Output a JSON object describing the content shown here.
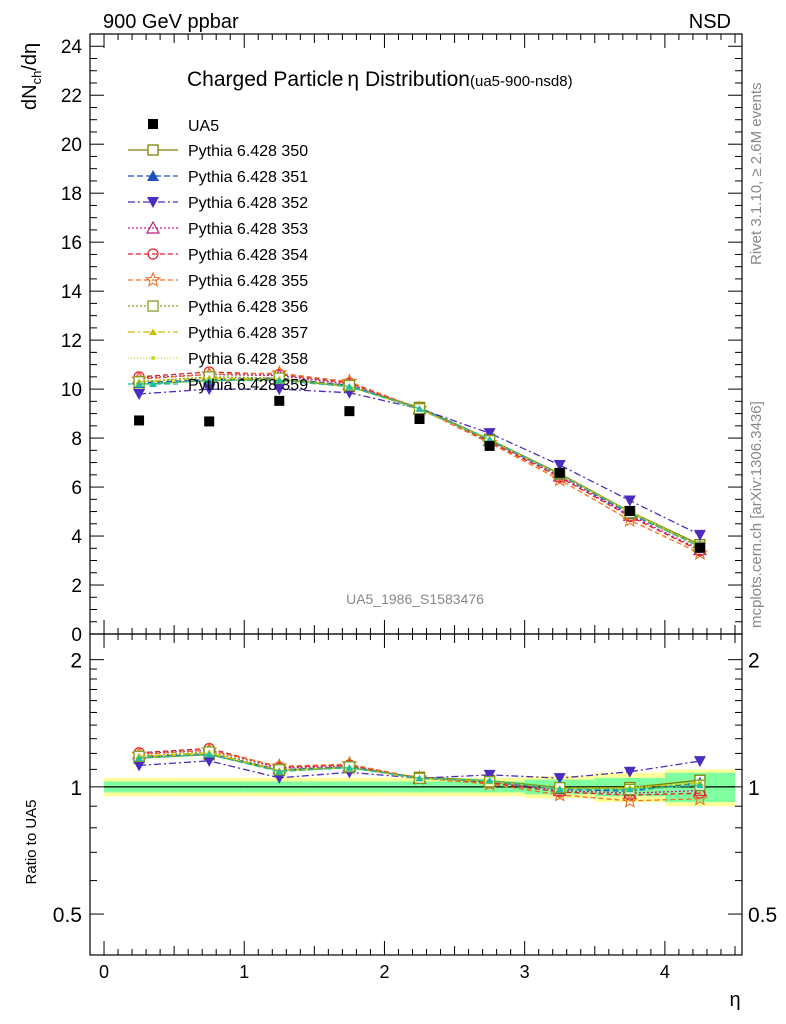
{
  "header": {
    "left": "900 GeV ppbar",
    "right": "NSD",
    "title": "Charged Particle",
    "title_eta": "η",
    "title_tail": " Distribution",
    "title_tag": "(ua5-900-nsd8)",
    "watermark": "UA5_1986_S1583476",
    "side_rivet": "Rivet 3.1.10, ≥ 2.6M events",
    "side_mcplots": "mcplots.cern.ch [arXiv:1306.3436]"
  },
  "axes": {
    "ylabel_top": "dN",
    "ylabel_sub": "ch",
    "ylabel_tail": "/dη",
    "ylabel_ratio": "Ratio to UA5",
    "xlabel": "η"
  },
  "colors": {
    "data": "#000000",
    "band_inner": "#7fff9f",
    "band_outer": "#ffff99"
  },
  "chart_data": {
    "type": "scatter",
    "x": [
      0.25,
      0.75,
      1.25,
      1.75,
      2.25,
      2.75,
      3.25,
      3.75,
      4.25
    ],
    "xlim": [
      -0.1,
      4.55
    ],
    "xticks": [
      "0",
      "1",
      "2",
      "3",
      "4"
    ],
    "ylim": [
      0,
      24.5
    ],
    "yticks": [
      "0",
      "2",
      "4",
      "6",
      "8",
      "10",
      "12",
      "14",
      "16",
      "18",
      "20",
      "22",
      "24"
    ],
    "ratio_ylim": [
      0.4,
      2.3
    ],
    "ratio_yticks": [
      "0.5",
      "1",
      "2"
    ],
    "data": {
      "name": "UA5",
      "values": [
        8.72,
        8.68,
        9.52,
        9.1,
        8.78,
        7.68,
        6.58,
        5.02,
        3.52
      ],
      "band_inner": [
        0.03,
        0.03,
        0.03,
        0.03,
        0.03,
        0.03,
        0.04,
        0.05,
        0.08
      ],
      "band_outer": [
        0.05,
        0.05,
        0.05,
        0.05,
        0.05,
        0.05,
        0.06,
        0.08,
        0.1
      ]
    },
    "series": [
      {
        "name": "Pythia 6.428 350",
        "color": "#808000",
        "marker": "square-open",
        "dash": "",
        "values": [
          10.2,
          10.35,
          10.4,
          10.1,
          9.25,
          7.95,
          6.55,
          5.0,
          3.65
        ]
      },
      {
        "name": "Pythia 6.428 351",
        "color": "#1f4fbf",
        "marker": "triangle-up",
        "dash": "6,3",
        "values": [
          10.25,
          10.4,
          10.45,
          10.15,
          9.2,
          7.9,
          6.5,
          4.9,
          3.6
        ]
      },
      {
        "name": "Pythia 6.428 352",
        "color": "#4b2cbf",
        "marker": "triangle-down",
        "dash": "7,3,2,3",
        "values": [
          9.8,
          10.0,
          10.0,
          9.85,
          9.2,
          8.2,
          6.9,
          5.45,
          4.05
        ]
      },
      {
        "name": "Pythia 6.428 353",
        "color": "#bf1f7f",
        "marker": "triangle-open",
        "dash": "2,2",
        "values": [
          10.45,
          10.6,
          10.55,
          10.2,
          9.2,
          7.9,
          6.45,
          4.85,
          3.45
        ]
      },
      {
        "name": "Pythia 6.428 354",
        "color": "#e0202a",
        "marker": "circle-open",
        "dash": "5,3",
        "values": [
          10.5,
          10.7,
          10.6,
          10.25,
          9.2,
          7.85,
          6.4,
          4.8,
          3.4
        ]
      },
      {
        "name": "Pythia 6.428 355",
        "color": "#ef7020",
        "marker": "star-open",
        "dash": "5,3",
        "values": [
          10.4,
          10.6,
          10.65,
          10.3,
          9.2,
          7.8,
          6.3,
          4.65,
          3.3
        ]
      },
      {
        "name": "Pythia 6.428 356",
        "color": "#7f9f20",
        "marker": "square-open",
        "dash": "2,2",
        "values": [
          10.3,
          10.5,
          10.45,
          10.15,
          9.2,
          7.9,
          6.55,
          4.95,
          3.55
        ]
      },
      {
        "name": "Pythia 6.428 357",
        "color": "#cfbf00",
        "marker": "tri-small",
        "dash": "7,3,2,3",
        "values": [
          10.3,
          10.45,
          10.4,
          10.1,
          9.2,
          7.92,
          6.52,
          4.98,
          3.6
        ]
      },
      {
        "name": "Pythia 6.428 358",
        "color": "#bfdf20",
        "marker": "dot",
        "dash": "1,2",
        "values": [
          10.2,
          10.4,
          10.35,
          10.1,
          9.15,
          7.95,
          6.5,
          5.0,
          3.6
        ]
      },
      {
        "name": "Pythia 6.428 359",
        "color": "#20bf9f",
        "marker": "tri-small",
        "dash": "6,3",
        "values": [
          10.2,
          10.35,
          10.35,
          10.1,
          9.2,
          7.95,
          6.5,
          4.95,
          3.55
        ]
      }
    ]
  }
}
